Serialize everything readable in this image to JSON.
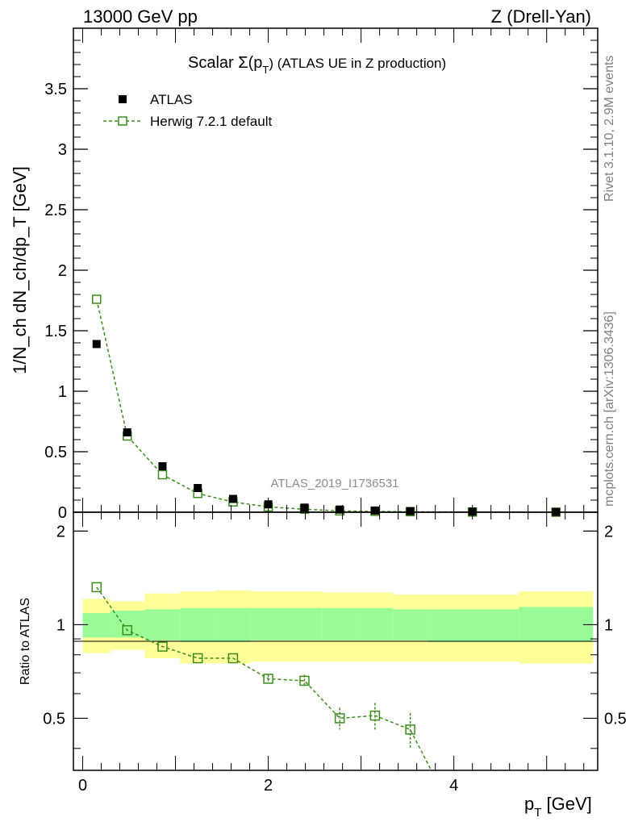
{
  "header": {
    "left": "13000 GeV pp",
    "right": "Z (Drell-Yan)"
  },
  "side_labels": {
    "rivet": "Rivet 3.1.10,  2.9M events",
    "mcplots": "mcplots.cern.ch [arXiv:1306.3436]"
  },
  "watermark": "ATLAS_2019_I1736531",
  "colors": {
    "data": "#000000",
    "mc": "#3d8c1e",
    "band_inner": "#98fb98",
    "band_outer": "#ffff99"
  },
  "chart_data": [
    {
      "type": "scatter",
      "panel": "main",
      "title_prefix": "Scalar Σ(p",
      "title_sub": "T",
      "title_suffix": ") (ATLAS UE in Z production)",
      "ylabel": "1/N_ch dN_ch/dp_T [GeV]",
      "ylim": [
        0,
        4.0
      ],
      "xlim": [
        -0.1,
        5.55
      ],
      "yticks": [
        "0",
        "0.5",
        "1",
        "1.5",
        "2",
        "2.5",
        "3",
        "3.5"
      ],
      "legend": {
        "position": "top-left",
        "entries": [
          "ATLAS",
          "Herwig 7.2.1 default"
        ]
      },
      "series": [
        {
          "name": "ATLAS",
          "style": "filled-square",
          "x": [
            0.15,
            0.48,
            0.86,
            1.24,
            1.62,
            2.0,
            2.39,
            2.77,
            3.15,
            3.53,
            4.2,
            5.1
          ],
          "values": [
            1.39,
            0.66,
            0.38,
            0.2,
            0.11,
            0.065,
            0.038,
            0.022,
            0.014,
            0.009,
            0.005,
            0.002
          ]
        },
        {
          "name": "Herwig 7.2.1 default",
          "style": "open-square-dashed",
          "x": [
            0.15,
            0.48,
            0.86,
            1.24,
            1.62,
            2.0,
            2.39,
            2.77,
            3.15,
            3.53,
            4.2,
            5.1
          ],
          "values": [
            1.76,
            0.63,
            0.31,
            0.155,
            0.085,
            0.044,
            0.025,
            0.011,
            0.007,
            0.004,
            0.0012,
            0.0003
          ]
        }
      ]
    },
    {
      "type": "line",
      "panel": "ratio",
      "ylabel": "Ratio to ATLAS",
      "xlabel_main": "p",
      "xlabel_sub": "T",
      "xlabel_unit": " [GeV]",
      "ylim": [
        0.34,
        2.3
      ],
      "xlim": [
        -0.1,
        5.55
      ],
      "yticks": [
        "0.5",
        "1",
        "2"
      ],
      "xticks": [
        "0",
        "2",
        "4"
      ],
      "bands": {
        "edges": [
          0.0,
          0.3,
          0.67,
          1.05,
          1.43,
          1.81,
          2.19,
          2.58,
          2.96,
          3.34,
          3.72,
          4.7,
          5.5
        ],
        "inner_low": [
          0.91,
          0.91,
          0.89,
          0.88,
          0.88,
          0.89,
          0.89,
          0.89,
          0.89,
          0.89,
          0.88,
          0.88
        ],
        "inner_high": [
          1.09,
          1.11,
          1.12,
          1.13,
          1.13,
          1.13,
          1.13,
          1.13,
          1.13,
          1.12,
          1.12,
          1.14
        ],
        "outer_low": [
          0.81,
          0.83,
          0.78,
          0.75,
          0.75,
          0.76,
          0.76,
          0.76,
          0.76,
          0.76,
          0.76,
          0.75
        ],
        "outer_high": [
          1.21,
          1.19,
          1.26,
          1.28,
          1.29,
          1.28,
          1.28,
          1.27,
          1.27,
          1.25,
          1.25,
          1.28
        ]
      },
      "series": [
        {
          "name": "Herwig 7.2.1 default",
          "x": [
            0.15,
            0.48,
            0.86,
            1.24,
            1.62,
            2.0,
            2.39,
            2.77,
            3.15,
            3.53
          ],
          "values": [
            1.32,
            0.96,
            0.85,
            0.78,
            0.78,
            0.67,
            0.66,
            0.5,
            0.51,
            0.46
          ],
          "err": [
            0.01,
            0.01,
            0.01,
            0.01,
            0.01,
            0.02,
            0.03,
            0.04,
            0.05,
            0.06
          ],
          "continues_to": [
            3.85,
            0.3
          ]
        }
      ]
    }
  ]
}
